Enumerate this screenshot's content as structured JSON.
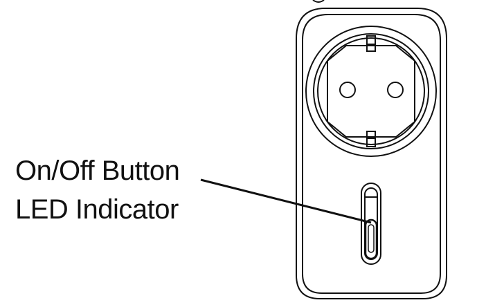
{
  "diagram": {
    "subject": "smart plug adapter",
    "labels": {
      "onoff_button": "On/Off Button",
      "led_indicator": "LED Indicator"
    },
    "colors": {
      "stroke": "#111111",
      "background": "#ffffff"
    }
  }
}
